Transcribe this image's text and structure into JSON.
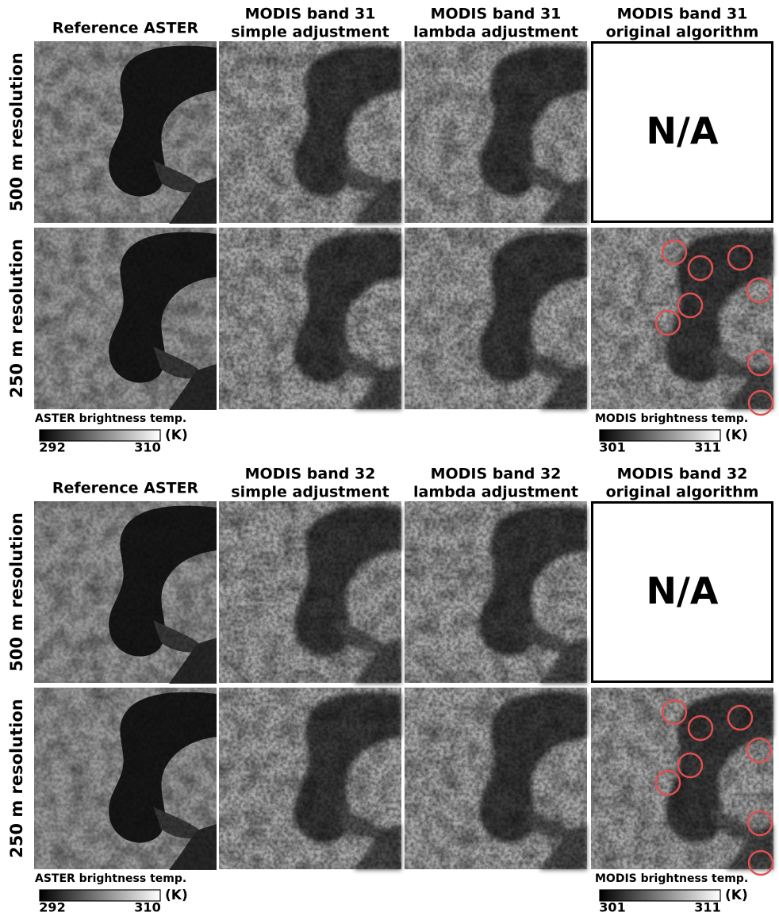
{
  "sections": [
    {
      "column_headers": [
        [
          "Reference ASTER"
        ],
        [
          "MODIS band 31",
          "simple adjustment"
        ],
        [
          "MODIS band 31",
          "lambda adjustment"
        ],
        [
          "MODIS band 31",
          "original algorithm"
        ]
      ],
      "row_labels": [
        "500 m resolution",
        "250 m resolution"
      ],
      "not_available": "N/A",
      "colorbars": [
        {
          "label": "ASTER brightness temp.",
          "min": 292,
          "max": 310,
          "unit": "(K)"
        },
        {
          "label": "MODIS brightness temp.",
          "min": 301,
          "max": 311,
          "unit": "(K)"
        }
      ]
    },
    {
      "column_headers": [
        [
          "Reference ASTER"
        ],
        [
          "MODIS band 32",
          "simple adjustment"
        ],
        [
          "MODIS band 32",
          "lambda adjustment"
        ],
        [
          "MODIS band 32",
          "original algorithm"
        ]
      ],
      "row_labels": [
        "500 m resolution",
        "250 m resolution"
      ],
      "not_available": "N/A",
      "colorbars": [
        {
          "label": "ASTER brightness temp.",
          "min": 292,
          "max": 310,
          "unit": "(K)"
        },
        {
          "label": "MODIS brightness temp.",
          "min": 301,
          "max": 311,
          "unit": "(K)"
        }
      ]
    }
  ]
}
